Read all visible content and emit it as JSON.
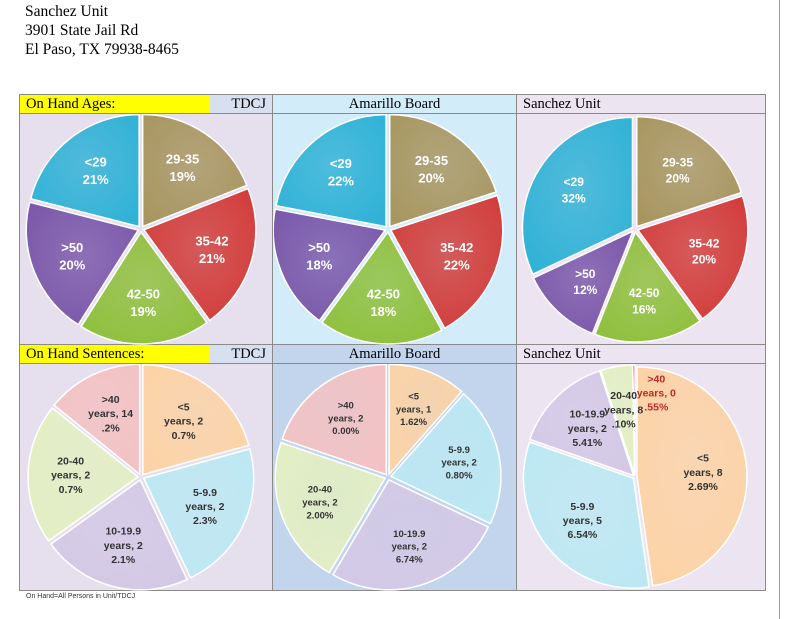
{
  "address": {
    "line1": "Sanchez Unit",
    "line2": "3901 State Jail Rd",
    "line3": "El Paso, TX 79938-8465"
  },
  "ages_row": {
    "label": "On Hand Ages:",
    "tdcj": "TDCJ",
    "board": "Amarillo Board",
    "unit": "Sanchez Unit"
  },
  "sentences_row": {
    "label": "On Hand Sentences:",
    "tdcj": "TDCJ",
    "board": "Amarillo Board",
    "unit": "Sanchez Unit"
  },
  "footnote": "On Hand=All Persons in Unit/TDCJ",
  "colors": {
    "tan": "#a89660",
    "red": "#d23c3a",
    "green": "#8fc03c",
    "purple": "#7a57aa",
    "cyan": "#30b2d6",
    "peach": "#fcd3a6",
    "lightblue": "#bce8f3",
    "lavender": "#d3c9e6",
    "lightgreen": "#e3efc3",
    "pink": "#f3c2c3",
    "darkred": "#c0282a"
  },
  "chart_data": [
    {
      "type": "pie",
      "title": "On Hand Ages: TDCJ",
      "slices": [
        {
          "label": "29-35",
          "pct": "19%",
          "value": 19,
          "color": "#a89660"
        },
        {
          "label": "35-42",
          "pct": "21%",
          "value": 21,
          "color": "#d23c3a"
        },
        {
          "label": "42-50",
          "pct": "19%",
          "value": 19,
          "color": "#8fc03c"
        },
        {
          "label": ">50",
          "pct": "20%",
          "value": 20,
          "color": "#7a57aa"
        },
        {
          "label": "<29",
          "pct": "21%",
          "value": 21,
          "color": "#30b2d6"
        }
      ]
    },
    {
      "type": "pie",
      "title": "Amarillo Board",
      "slices": [
        {
          "label": "29-35",
          "pct": "20%",
          "value": 20,
          "color": "#a89660"
        },
        {
          "label": "35-42",
          "pct": "22%",
          "value": 22,
          "color": "#d23c3a"
        },
        {
          "label": "42-50",
          "pct": "18%",
          "value": 18,
          "color": "#8fc03c"
        },
        {
          "label": ">50",
          "pct": "18%",
          "value": 18,
          "color": "#7a57aa"
        },
        {
          "label": "<29",
          "pct": "22%",
          "value": 22,
          "color": "#30b2d6"
        }
      ]
    },
    {
      "type": "pie",
      "title": "Sanchez Unit",
      "slices": [
        {
          "label": "29-35",
          "pct": "20%",
          "value": 20,
          "color": "#a89660"
        },
        {
          "label": "35-42",
          "pct": "20%",
          "value": 20,
          "color": "#d23c3a"
        },
        {
          "label": "42-50",
          "pct": "16%",
          "value": 16,
          "color": "#8fc03c"
        },
        {
          "label": ">50",
          "pct": "12%",
          "value": 12,
          "color": "#7a57aa"
        },
        {
          "label": "<29",
          "pct": "32%",
          "value": 32,
          "color": "#30b2d6"
        }
      ]
    },
    {
      "type": "pie",
      "title": "On Hand Sentences: TDCJ",
      "slices": [
        {
          "lines": [
            "<5",
            "years, 2",
            "0.7%"
          ],
          "value": 20.7,
          "color": "#fcd3a6"
        },
        {
          "lines": [
            "5-9.9",
            "years, 2",
            "2.3%"
          ],
          "value": 22.3,
          "color": "#bce8f3"
        },
        {
          "lines": [
            "10-19.9",
            "years, 2",
            "2.1%"
          ],
          "value": 22.1,
          "color": "#d3c9e6"
        },
        {
          "lines": [
            "20-40",
            "years, 2",
            "0.7%"
          ],
          "value": 20.7,
          "color": "#e3efc3"
        },
        {
          "lines": [
            ">40",
            "years, 14",
            ".2%"
          ],
          "value": 14.2,
          "color": "#f3c2c3"
        }
      ]
    },
    {
      "type": "pie",
      "title": "Amarillo Board",
      "slices": [
        {
          "lines": [
            "<5",
            "years, 1",
            "1.62%"
          ],
          "value": 11.62,
          "color": "#fcd3a6"
        },
        {
          "lines": [
            "5-9.9",
            "years, 2",
            "0.80%"
          ],
          "value": 20.8,
          "color": "#bce8f3"
        },
        {
          "lines": [
            "10-19.9",
            "years, 2",
            "6.74%"
          ],
          "value": 26.74,
          "color": "#d3c9e6"
        },
        {
          "lines": [
            "20-40",
            "years, 2",
            "2.00%"
          ],
          "value": 22.0,
          "color": "#e3efc3"
        },
        {
          "lines": [
            ">40",
            "years, 2",
            "0.00%"
          ],
          "value": 20.0,
          "color": "#f3c2c3"
        }
      ]
    },
    {
      "type": "pie",
      "title": "Sanchez Unit",
      "slices": [
        {
          "lines": [
            "<5",
            "years, 8",
            "2.69%"
          ],
          "value": 82.69,
          "color": "#fcd3a6"
        },
        {
          "lines": [
            "5-9.9",
            "years, 5",
            "6.54%"
          ],
          "value": 56.54,
          "color": "#bce8f3"
        },
        {
          "lines": [
            "10-19.9",
            "years, 2",
            "5.41%"
          ],
          "value": 25.41,
          "color": "#d3c9e6"
        },
        {
          "lines": [
            "20-40",
            "years, 8",
            ".10%"
          ],
          "value": 8.1,
          "color": "#e3efc3"
        },
        {
          "lines": [
            ">40",
            "years, 0",
            ".55%"
          ],
          "value": 0.55,
          "color": "#c0282a"
        }
      ]
    }
  ]
}
